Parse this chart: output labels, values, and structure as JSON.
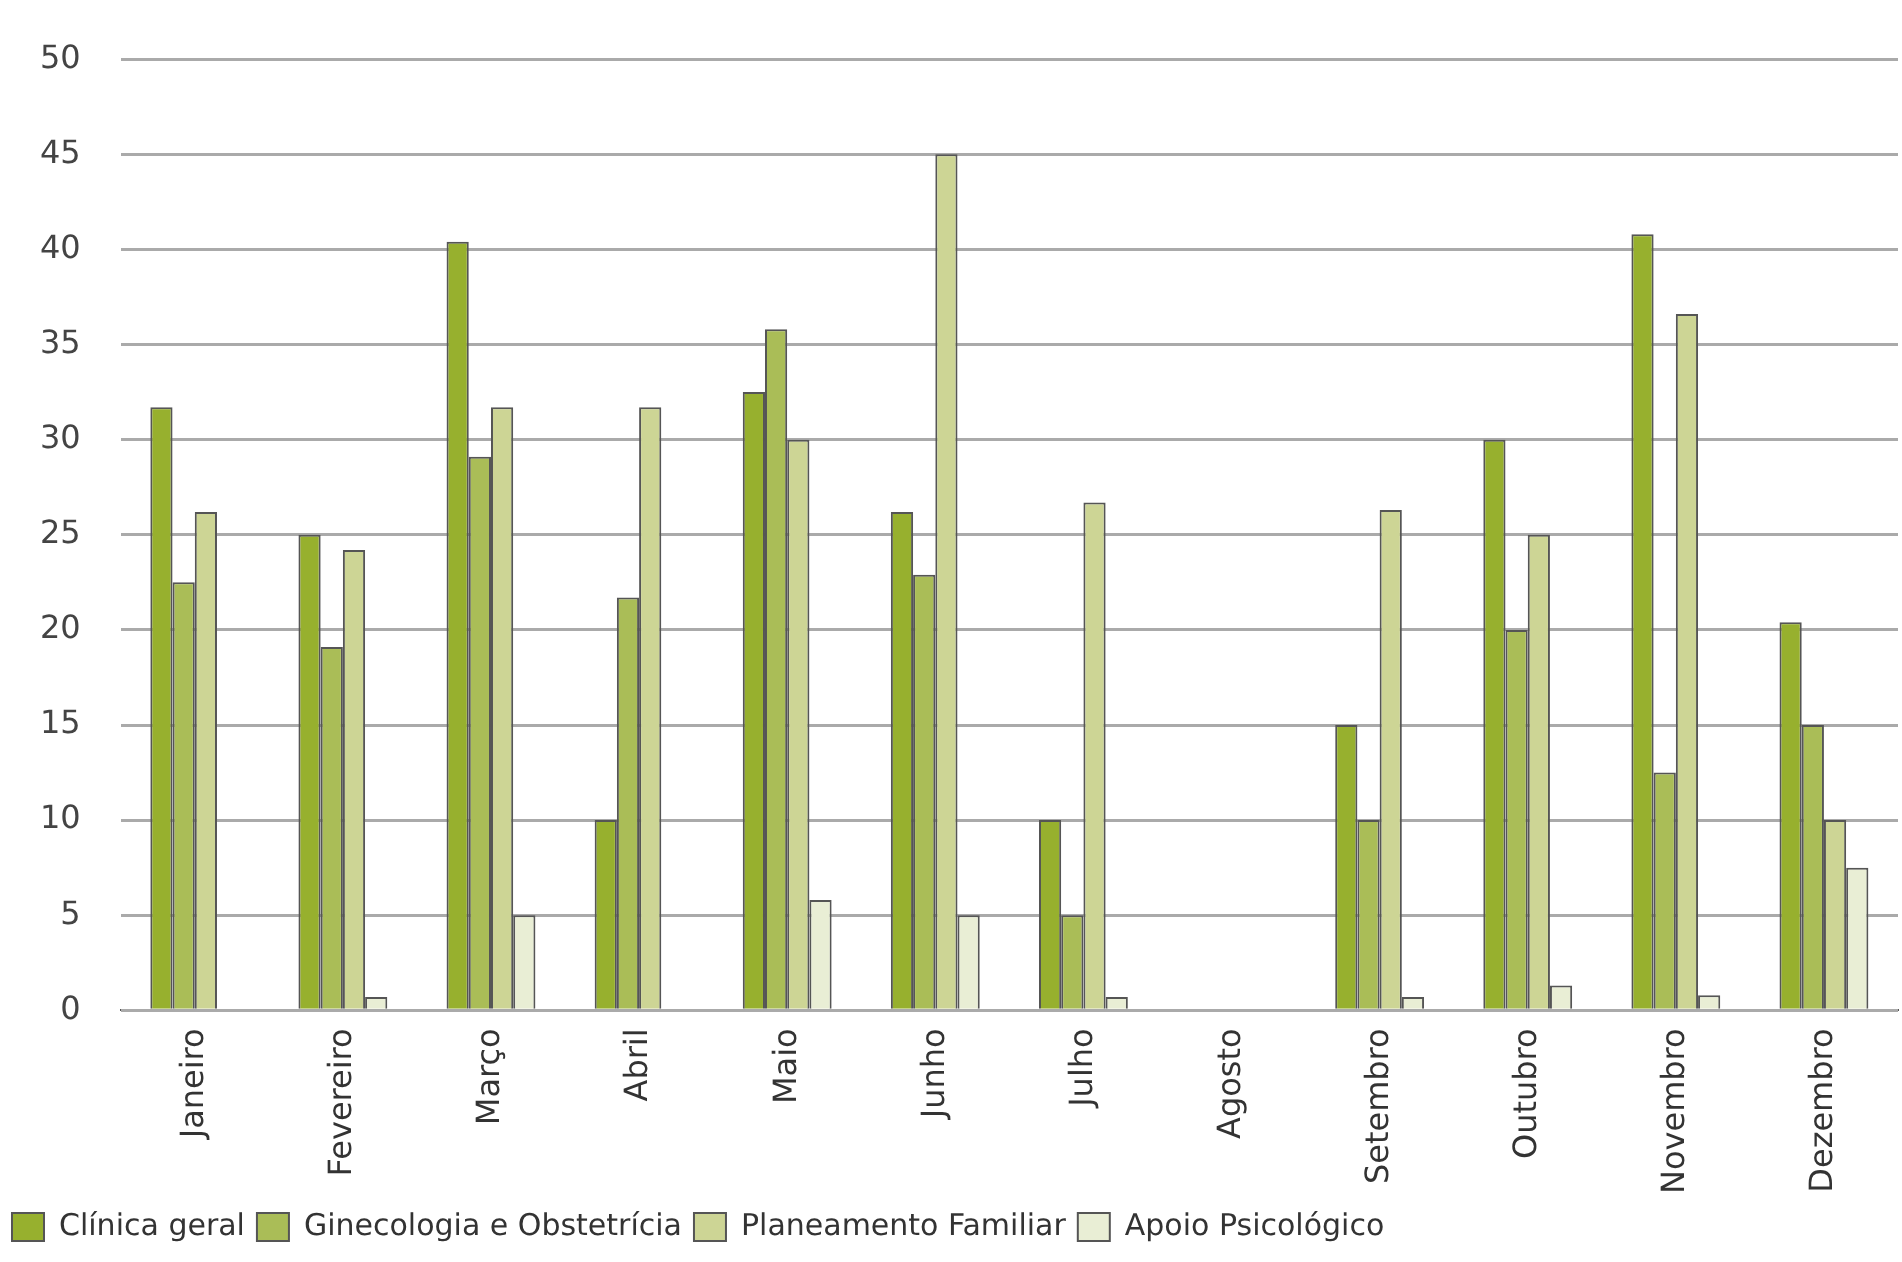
{
  "chart_data": {
    "type": "bar",
    "categories": [
      "Janeiro",
      "Fevereiro",
      "Março",
      "Abril",
      "Maio",
      "Junho",
      "Julho",
      "Agosto",
      "Setembro",
      "Outubro",
      "Novembro",
      "Dezembro"
    ],
    "series": [
      {
        "name": "Clínica geral",
        "color": "#97b02e",
        "values": [
          31.7,
          25,
          40.4,
          10,
          32.5,
          26.2,
          10,
          0,
          15,
          30,
          40.8,
          20.4
        ]
      },
      {
        "name": "Ginecologia e Obstetrícia",
        "color": "#aabd57",
        "values": [
          22.5,
          19.1,
          29.1,
          21.7,
          35.8,
          22.9,
          5,
          0,
          10,
          20,
          12.5,
          15
        ]
      },
      {
        "name": "Planeamento Familiar",
        "color": "#cdd595",
        "values": [
          26.2,
          24.2,
          31.7,
          31.7,
          30,
          45,
          26.7,
          0,
          26.3,
          25,
          36.6,
          10
        ]
      },
      {
        "name": "Apoio Psicológico",
        "color": "#e9eed5",
        "values": [
          0,
          0.7,
          5,
          0,
          5.8,
          5,
          0.7,
          0,
          0.7,
          1.3,
          0.8,
          7.5
        ]
      }
    ],
    "ylim": [
      0,
      50
    ],
    "yticks": [
      0,
      5,
      10,
      15,
      20,
      25,
      30,
      35,
      40,
      45,
      50
    ],
    "grid": "y",
    "legend": "bottom left"
  }
}
